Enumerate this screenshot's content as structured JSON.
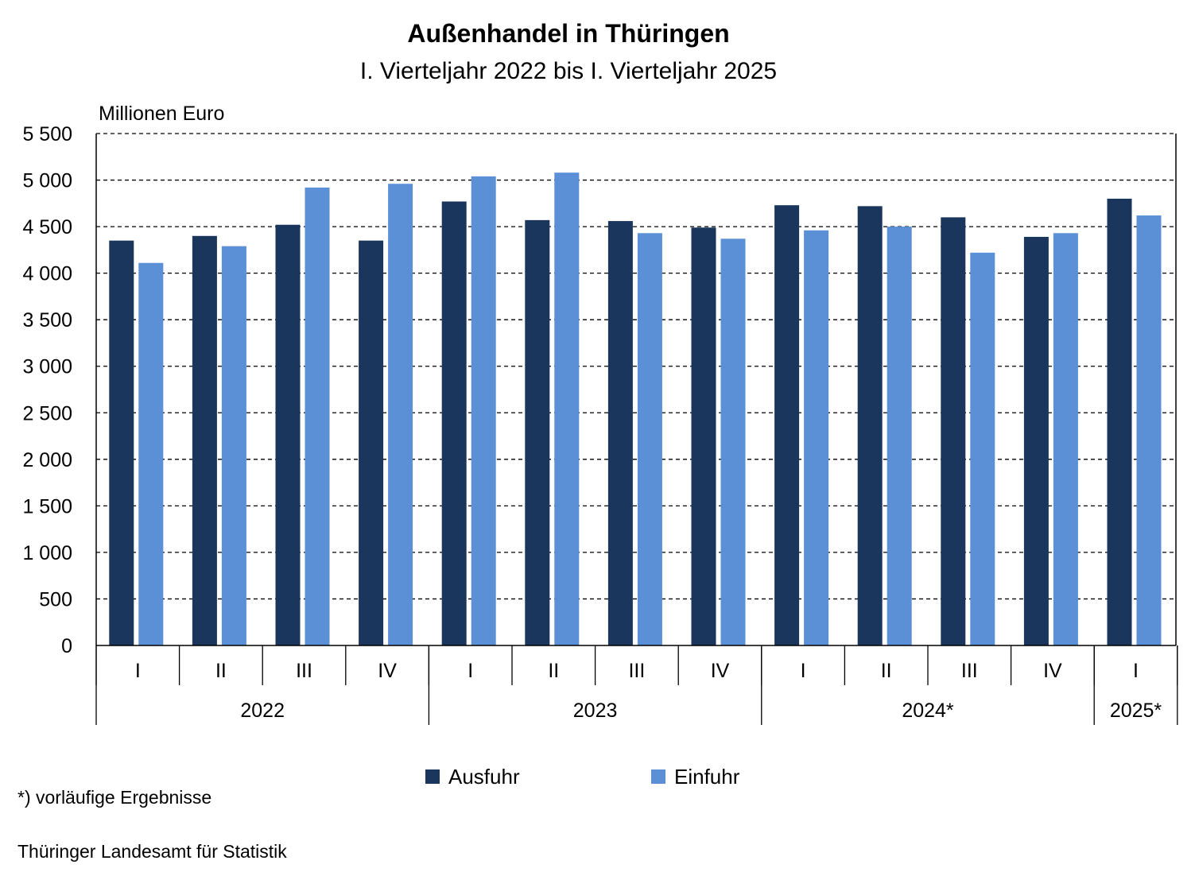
{
  "colors": {
    "Ausfuhr": "#1b365d",
    "Einfuhr": "#5b8fd6",
    "grid": "#000000"
  },
  "chart_data": {
    "type": "bar",
    "title": "Außenhandel in Thüringen",
    "subtitle": "I. Vierteljahr 2022 bis I. Vierteljahr 2025",
    "ylabel": "Millionen Euro",
    "ylim": [
      0,
      5500
    ],
    "yticks": [
      0,
      500,
      1000,
      1500,
      2000,
      2500,
      3000,
      3500,
      4000,
      4500,
      5000,
      5500
    ],
    "ytick_labels": [
      "0",
      "500",
      "1 000",
      "1 500",
      "2 000",
      "2 500",
      "3 000",
      "3 500",
      "4 000",
      "4 500",
      "5 000",
      "5 500"
    ],
    "grid": true,
    "legend_position": "bottom",
    "categories": [
      "I",
      "II",
      "III",
      "IV",
      "I",
      "II",
      "III",
      "IV",
      "I",
      "II",
      "III",
      "IV",
      "I"
    ],
    "groups": [
      {
        "label": "2022",
        "count": 4
      },
      {
        "label": "2023",
        "count": 4
      },
      {
        "label": "2024*",
        "count": 4
      },
      {
        "label": "2025*",
        "count": 1
      }
    ],
    "series": [
      {
        "name": "Ausfuhr",
        "values": [
          4350,
          4400,
          4520,
          4350,
          4770,
          4570,
          4560,
          4490,
          4730,
          4720,
          4600,
          4390,
          4800
        ]
      },
      {
        "name": "Einfuhr",
        "values": [
          4110,
          4290,
          4920,
          4960,
          5040,
          5080,
          4430,
          4370,
          4460,
          4500,
          4220,
          4430,
          4620
        ]
      }
    ]
  },
  "footnote": "*) vorläufige Ergebnisse",
  "source": "Thüringer Landesamt für Statistik"
}
